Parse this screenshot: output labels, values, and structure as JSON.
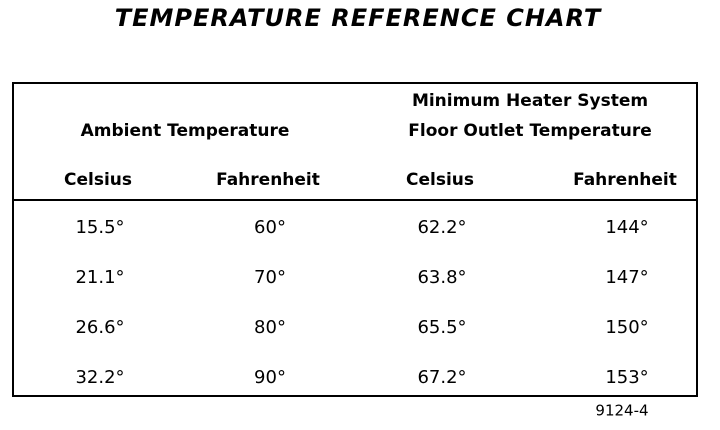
{
  "title": "TEMPERATURE REFERENCE CHART",
  "table": {
    "group_headers": [
      [
        "Ambient Temperature"
      ],
      [
        "Minimum Heater System",
        "Floor Outlet Temperature"
      ]
    ],
    "columns": [
      "Celsius",
      "Fahrenheit",
      "Celsius",
      "Fahrenheit"
    ],
    "rows": [
      [
        "15.5°",
        "60°",
        "62.2°",
        "144°"
      ],
      [
        "21.1°",
        "70°",
        "63.8°",
        "147°"
      ],
      [
        "26.6°",
        "80°",
        "65.5°",
        "150°"
      ],
      [
        "32.2°",
        "90°",
        "67.2°",
        "153°"
      ]
    ]
  },
  "figure_id": "9124-4"
}
